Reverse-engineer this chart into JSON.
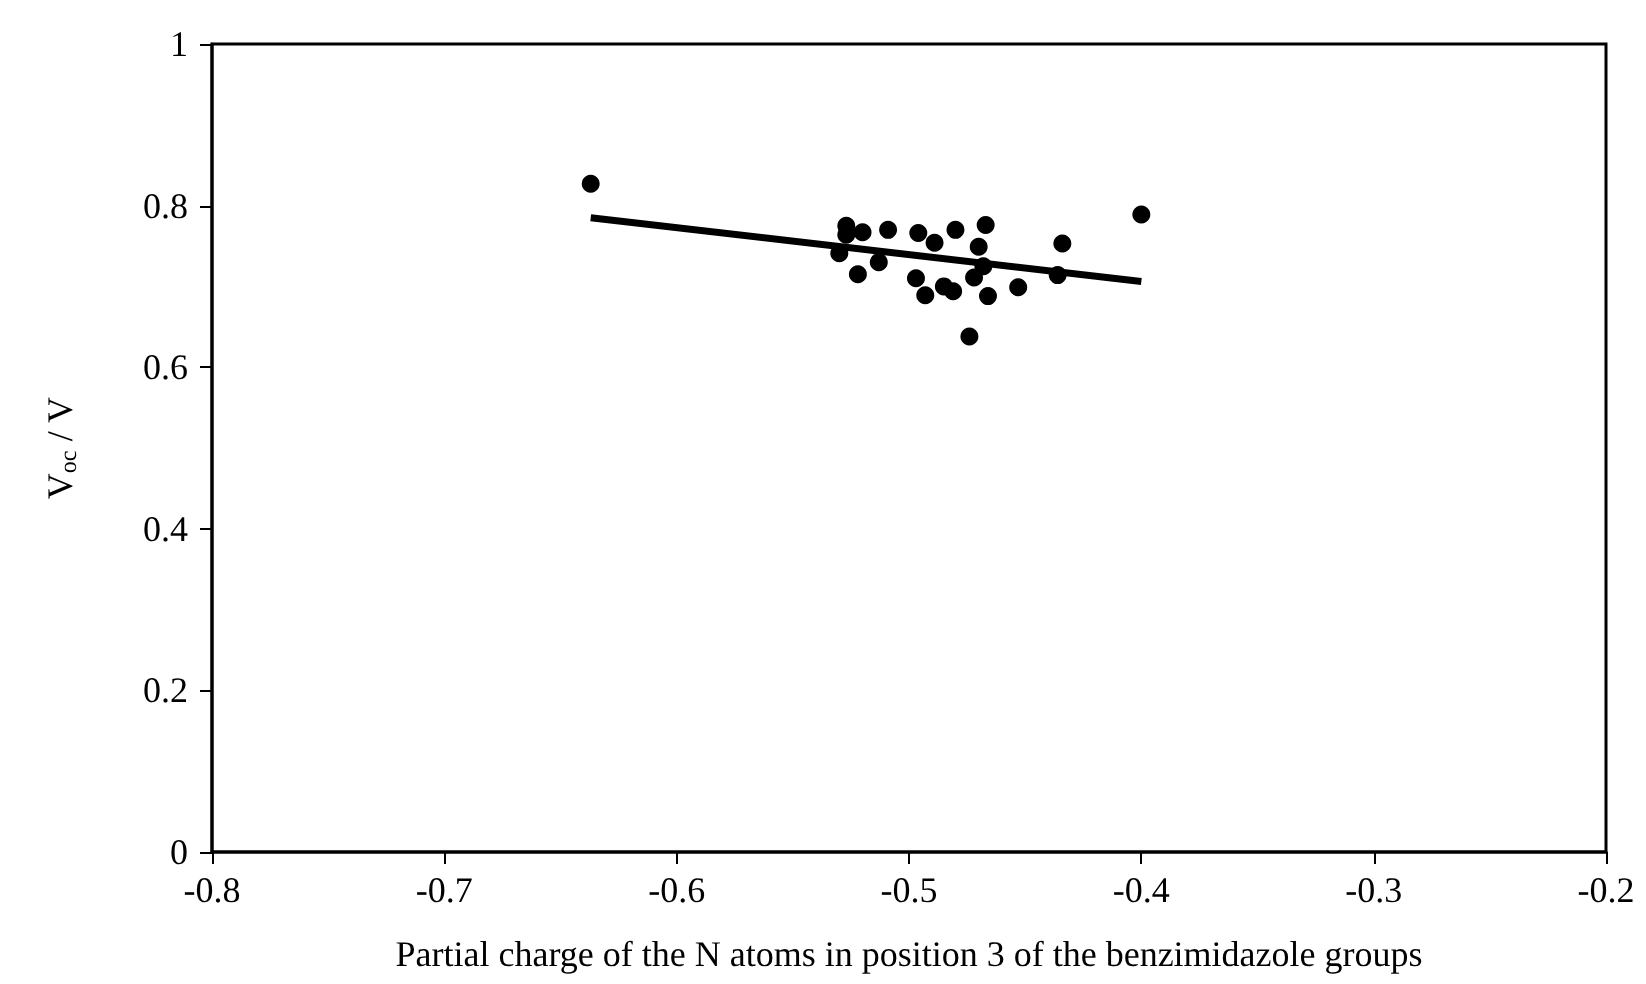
{
  "chart_data": {
    "type": "scatter",
    "xlabel": "Partial charge of the N atoms in position 3 of the benzimidazole groups",
    "ylabel": "V$_{oc}$ / V",
    "xlim": [
      -0.8,
      -0.2
    ],
    "xticks": [
      -0.8,
      -0.7,
      -0.6,
      -0.5,
      -0.4,
      -0.3,
      -0.2
    ],
    "ylim": [
      0,
      1
    ],
    "yticks": [
      0,
      0.2,
      0.4,
      0.6,
      0.8,
      1
    ],
    "grid": false,
    "marker": "circle",
    "series": [
      {
        "color": "#000000",
        "x": [
          -0.637,
          -0.4,
          -0.527,
          -0.527,
          -0.53,
          -0.52,
          -0.522,
          -0.513,
          -0.509,
          -0.496,
          -0.497,
          -0.493,
          -0.489,
          -0.485,
          -0.481,
          -0.48,
          -0.474,
          -0.472,
          -0.47,
          -0.468,
          -0.467,
          -0.466,
          -0.453,
          -0.436,
          -0.434
        ],
        "values": [
          0.827,
          0.789,
          0.775,
          0.764,
          0.741,
          0.767,
          0.715,
          0.73,
          0.77,
          0.766,
          0.71,
          0.689,
          0.754,
          0.7,
          0.694,
          0.77,
          0.638,
          0.711,
          0.749,
          0.725,
          0.776,
          0.688,
          0.699,
          0.714,
          0.753
        ]
      },
      {
        "type": "line",
        "color": "#000000",
        "x": [
          -0.637,
          -0.4
        ],
        "values": [
          0.785,
          0.706
        ],
        "marker": "none",
        "line_style": "solid"
      }
    ]
  }
}
